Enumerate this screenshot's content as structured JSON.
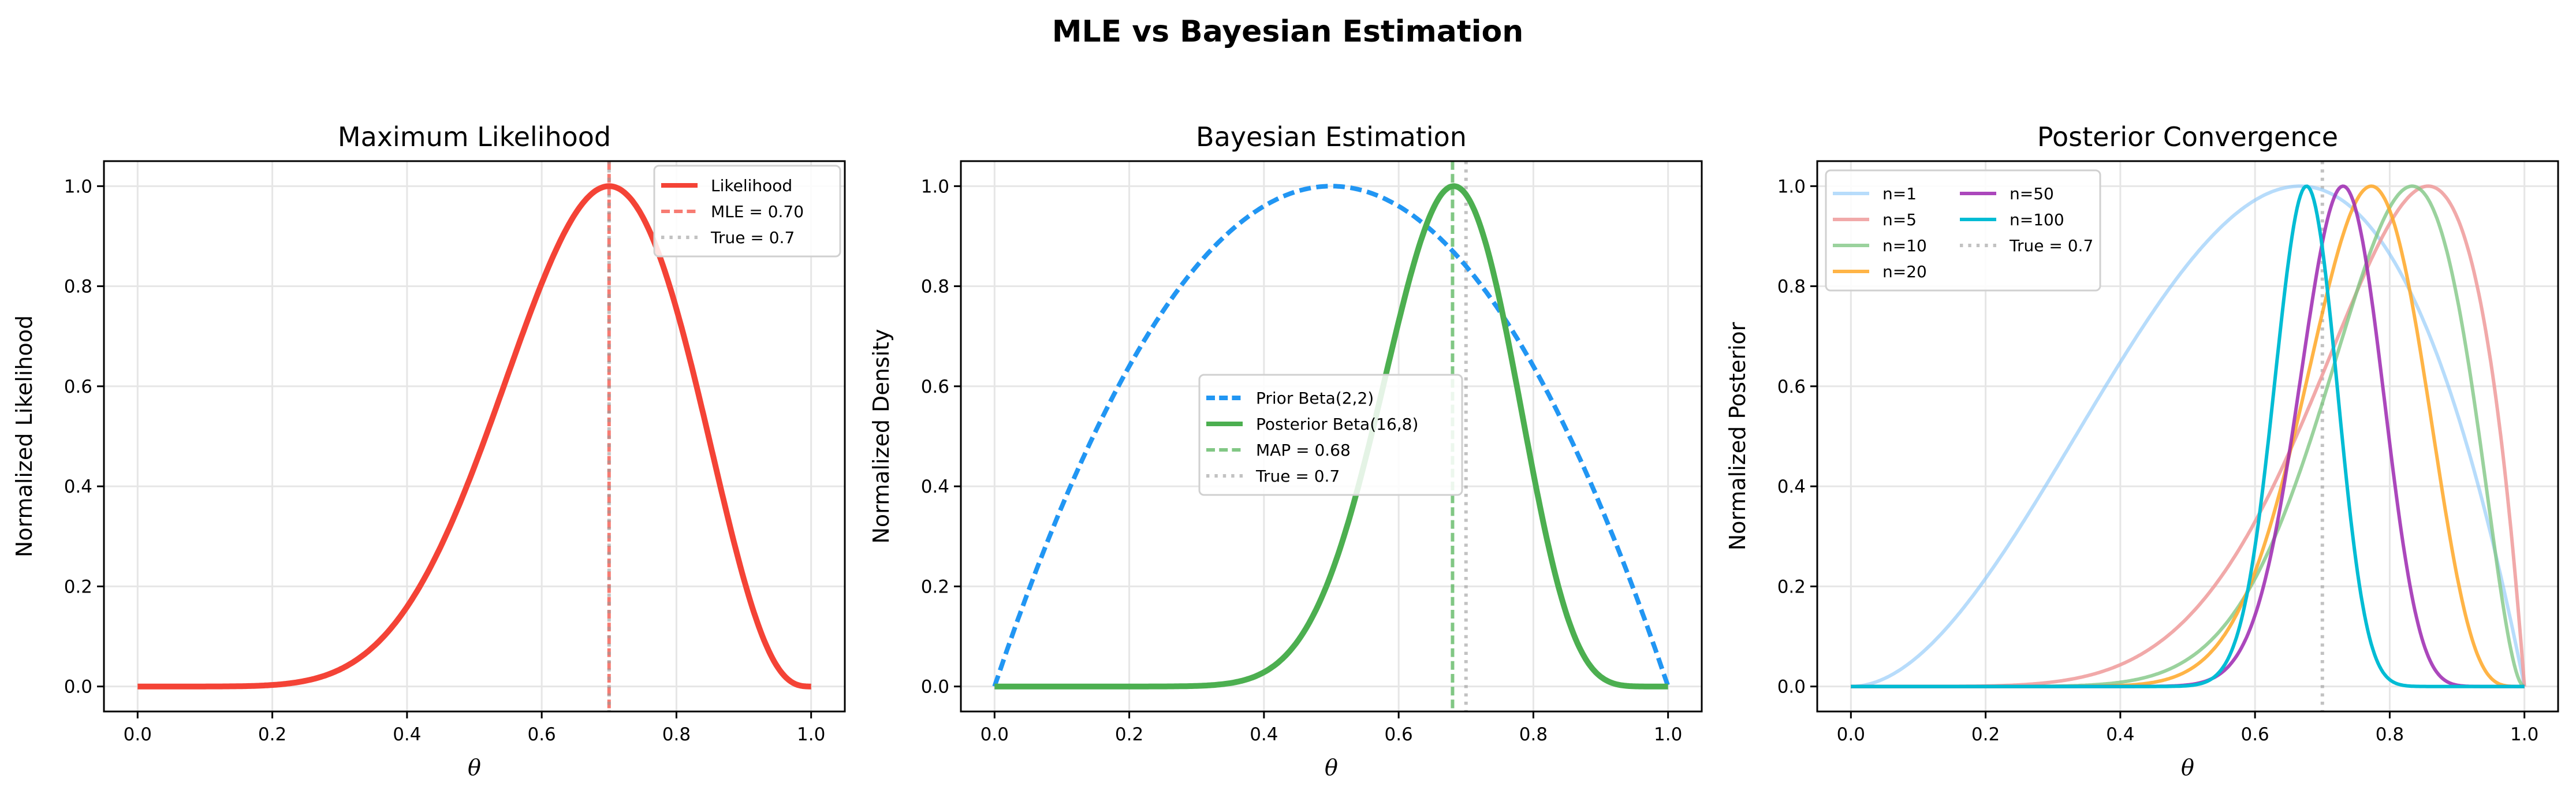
{
  "suptitle": "MLE vs Bayesian Estimation",
  "chart_data": [
    {
      "type": "line",
      "title": "Maximum Likelihood",
      "xlabel": "θ",
      "ylabel": "Normalized Likelihood",
      "xlim": [
        -0.05,
        1.05
      ],
      "ylim": [
        -0.05,
        1.05
      ],
      "xticks": [
        "0.0",
        "0.2",
        "0.4",
        "0.6",
        "0.8",
        "1.0"
      ],
      "yticks": [
        "0.0",
        "0.2",
        "0.4",
        "0.6",
        "0.8",
        "1.0"
      ],
      "grid": true,
      "legend_position": "upper right",
      "series": [
        {
          "name": "Likelihood",
          "curve": "normalized θ^7(1-θ)^3",
          "alpha": 8,
          "beta": 4,
          "color": "#f44336",
          "style": "solid",
          "width": 10,
          "opacity": 1
        }
      ],
      "vlines": [
        {
          "name": "MLE = 0.70",
          "x": 0.7,
          "color": "#f44336",
          "style": "dashed",
          "opacity": 0.7
        },
        {
          "name": "True = 0.7",
          "x": 0.7,
          "color": "#999999",
          "style": "dotted",
          "opacity": 0.6
        }
      ]
    },
    {
      "type": "line",
      "title": "Bayesian Estimation",
      "xlabel": "θ",
      "ylabel": "Normalized Density",
      "xlim": [
        -0.05,
        1.05
      ],
      "ylim": [
        -0.05,
        1.05
      ],
      "xticks": [
        "0.0",
        "0.2",
        "0.4",
        "0.6",
        "0.8",
        "1.0"
      ],
      "yticks": [
        "0.0",
        "0.2",
        "0.4",
        "0.6",
        "0.8",
        "1.0"
      ],
      "grid": true,
      "legend_position": "center",
      "series": [
        {
          "name": "Prior Beta(2,2)",
          "alpha": 2,
          "beta": 2,
          "color": "#2196F3",
          "style": "dashed",
          "width": 8,
          "opacity": 1
        },
        {
          "name": "Posterior Beta(16,8)",
          "alpha": 16,
          "beta": 8,
          "color": "#4CAF50",
          "style": "solid",
          "width": 10,
          "opacity": 1
        }
      ],
      "vlines": [
        {
          "name": "MAP = 0.68",
          "x": 0.68,
          "color": "#4CAF50",
          "style": "dashed",
          "opacity": 0.7
        },
        {
          "name": "True = 0.7",
          "x": 0.7,
          "color": "#999999",
          "style": "dotted",
          "opacity": 0.6
        }
      ]
    },
    {
      "type": "line",
      "title": "Posterior Convergence",
      "xlabel": "θ",
      "ylabel": "Normalized Posterior",
      "xlim": [
        -0.05,
        1.05
      ],
      "ylim": [
        -0.05,
        1.05
      ],
      "xticks": [
        "0.0",
        "0.2",
        "0.4",
        "0.6",
        "0.8",
        "1.0"
      ],
      "yticks": [
        "0.0",
        "0.2",
        "0.4",
        "0.6",
        "0.8",
        "1.0"
      ],
      "grid": true,
      "legend_position": "upper left",
      "legend_columns": 2,
      "series": [
        {
          "name": "n=1",
          "alpha": 3,
          "beta": 2,
          "color": "#90CAF9",
          "style": "solid",
          "width": 6,
          "opacity": 0.65
        },
        {
          "name": "n=5",
          "alpha": 7,
          "beta": 2,
          "color": "#EF9A9A",
          "style": "solid",
          "width": 6,
          "opacity": 0.85
        },
        {
          "name": "n=10",
          "alpha": 11,
          "beta": 3,
          "color": "#81C784",
          "style": "solid",
          "width": 6,
          "opacity": 0.8
        },
        {
          "name": "n=20",
          "alpha": 18,
          "beta": 6,
          "color": "#FFA726",
          "style": "solid",
          "width": 6,
          "opacity": 0.85
        },
        {
          "name": "n=50",
          "alpha": 39,
          "beta": 15,
          "color": "#9C27B0",
          "style": "solid",
          "width": 6,
          "opacity": 0.85
        },
        {
          "name": "n=100",
          "alpha": 70,
          "beta": 34,
          "color": "#00BCD4",
          "style": "solid",
          "width": 6,
          "opacity": 1
        }
      ],
      "vlines": [
        {
          "name": "True = 0.7",
          "x": 0.7,
          "color": "#999999",
          "style": "dotted",
          "opacity": 0.6
        }
      ]
    }
  ]
}
